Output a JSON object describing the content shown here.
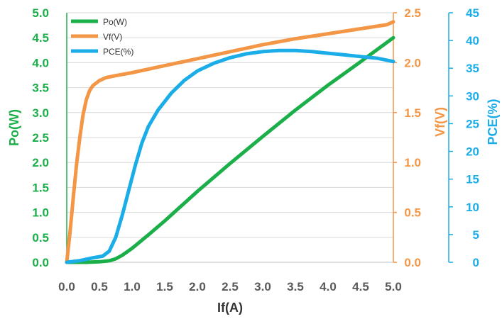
{
  "chart_data": {
    "type": "line",
    "xlabel": "If(A)",
    "x_ticks": [
      "0.0",
      "0.5",
      "1.0",
      "1.5",
      "2.0",
      "2.5",
      "3.0",
      "3.5",
      "4.0",
      "4.5",
      "5.0"
    ],
    "xlim": [
      0,
      5
    ],
    "grid": true,
    "legend_position": "top-left",
    "axes": [
      {
        "id": "po",
        "label": "Po(W)",
        "position": "left",
        "color": "#1BAF4A",
        "ylim": [
          0,
          5
        ],
        "ticks": [
          "0.0",
          "0.5",
          "1.0",
          "1.5",
          "2.0",
          "2.5",
          "3.0",
          "3.5",
          "4.0",
          "4.5",
          "5.0"
        ]
      },
      {
        "id": "vf",
        "label": "Vf(V)",
        "position": "right",
        "color": "#F39646",
        "ylim": [
          0,
          2.5
        ],
        "ticks": [
          "0.0",
          "0.5",
          "1.0",
          "1.5",
          "2.0",
          "2.5"
        ]
      },
      {
        "id": "pce",
        "label": "PCE(%)",
        "position": "right-outer",
        "color": "#1AADE8",
        "ylim": [
          0,
          45
        ],
        "ticks": [
          "0",
          "5",
          "10",
          "15",
          "20",
          "25",
          "30",
          "35",
          "40",
          "45"
        ]
      }
    ],
    "series": [
      {
        "name": "Po(W)",
        "axis": "po",
        "color": "#1BAF4A",
        "x": [
          0,
          0.3,
          0.5,
          0.65,
          0.75,
          0.85,
          1.0,
          1.25,
          1.5,
          2.0,
          2.5,
          3.0,
          3.5,
          4.0,
          4.5,
          5.0
        ],
        "y": [
          0,
          0,
          0.01,
          0.03,
          0.07,
          0.14,
          0.28,
          0.55,
          0.83,
          1.42,
          1.98,
          2.52,
          3.05,
          3.55,
          4.02,
          4.5
        ]
      },
      {
        "name": "Vf(V)",
        "axis": "vf",
        "color": "#F39646",
        "x": [
          0,
          0.05,
          0.1,
          0.15,
          0.2,
          0.25,
          0.3,
          0.35,
          0.4,
          0.5,
          0.6,
          0.75,
          1.0,
          1.5,
          2.0,
          2.5,
          3.0,
          3.5,
          4.0,
          4.5,
          4.9,
          5.0
        ],
        "y": [
          0,
          0.3,
          0.65,
          0.98,
          1.25,
          1.48,
          1.63,
          1.72,
          1.77,
          1.82,
          1.85,
          1.87,
          1.9,
          1.97,
          2.04,
          2.11,
          2.18,
          2.24,
          2.29,
          2.34,
          2.38,
          2.41
        ]
      },
      {
        "name": "PCE(%)",
        "axis": "pce",
        "color": "#1AADE8",
        "x": [
          0,
          0.2,
          0.4,
          0.55,
          0.65,
          0.75,
          0.85,
          0.95,
          1.05,
          1.15,
          1.25,
          1.4,
          1.6,
          1.8,
          2.0,
          2.25,
          2.5,
          2.75,
          3.0,
          3.25,
          3.5,
          3.75,
          4.0,
          4.25,
          4.5,
          4.75,
          5.0
        ],
        "y": [
          0,
          0.3,
          0.8,
          1.1,
          2.0,
          4.5,
          8.5,
          13.0,
          17.5,
          21.5,
          24.5,
          27.5,
          30.5,
          32.8,
          34.5,
          35.9,
          36.9,
          37.6,
          38.0,
          38.2,
          38.2,
          38.0,
          37.7,
          37.4,
          37.1,
          36.8,
          36.2
        ]
      }
    ]
  }
}
